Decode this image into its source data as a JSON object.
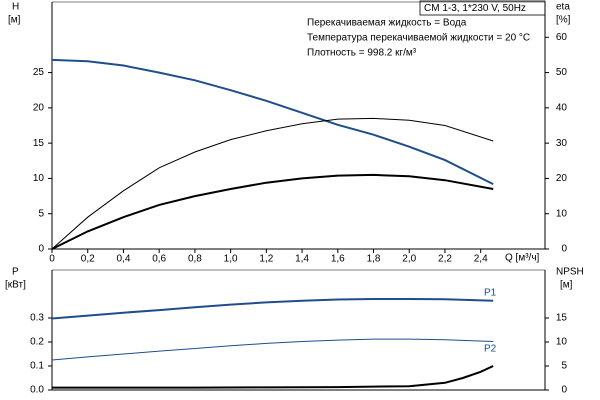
{
  "chart_data": [
    {
      "type": "line",
      "title": "CM 1-3, 1*230 V, 50Hz",
      "annotations": [
        "Перекачиваемая жидкость = Вода",
        "Температура перекачиваемой жидкости = 20 °C",
        "Плотность = 998.2 кг/м³"
      ],
      "y_label": "H",
      "y_unit": "[м]",
      "y2_label": "eta",
      "y2_unit": "[%]",
      "x_label": "Q [м³/ч]",
      "x": [
        0,
        0.2,
        0.4,
        0.6,
        0.8,
        1.0,
        1.2,
        1.4,
        1.6,
        1.8,
        2.0,
        2.2,
        2.47
      ],
      "xlim": [
        0,
        2.76
      ],
      "xticks": [
        0,
        {
          "value": 0.2,
          "label": "0,2"
        },
        {
          "value": 0.4,
          "label": "0,4"
        },
        {
          "value": 0.6,
          "label": "0,6"
        },
        {
          "value": 0.8,
          "label": "0,8"
        },
        {
          "value": 1.0,
          "label": "1,0"
        },
        {
          "value": 1.2,
          "label": "1,2"
        },
        {
          "value": 1.4,
          "label": "1,4"
        },
        {
          "value": 1.6,
          "label": "1,6"
        },
        {
          "value": 1.8,
          "label": "1,8"
        },
        {
          "value": 2.0,
          "label": "2,0"
        },
        {
          "value": 2.2,
          "label": "2,2"
        },
        {
          "value": 2.4,
          "label": "2,4"
        }
      ],
      "ylim": [
        0,
        35
      ],
      "yticks": [
        0,
        5,
        10,
        15,
        20,
        25
      ],
      "y2lim": [
        0,
        70
      ],
      "y2ticks": [
        0,
        10,
        20,
        30,
        40,
        50,
        60
      ],
      "series": [
        {
          "color": "#1f4e8c",
          "width": 2,
          "values": [
            26.8,
            26.6,
            26.0,
            25.0,
            23.9,
            22.5,
            21.0,
            19.3,
            17.6,
            16.2,
            14.5,
            12.6,
            9.2
          ]
        },
        {
          "color": "#000000",
          "width": 1,
          "axis": "y2",
          "values": [
            0,
            9,
            16.5,
            23,
            27.5,
            31,
            33.5,
            35.5,
            36.8,
            37,
            36.5,
            35,
            30.6
          ]
        },
        {
          "color": "#000000",
          "width": 2,
          "axis": "y2",
          "values": [
            0,
            5,
            9,
            12.5,
            15,
            17,
            18.8,
            20,
            20.8,
            21,
            20.6,
            19.5,
            17
          ]
        }
      ]
    },
    {
      "type": "line",
      "y_label": "P",
      "y_unit": "[кВт]",
      "y2_label": "NPSH",
      "y2_unit": "[м]",
      "x": [
        0,
        0.2,
        0.4,
        0.6,
        0.8,
        1.0,
        1.2,
        1.4,
        1.6,
        1.8,
        2.0,
        2.2,
        2.47
      ],
      "xlim": [
        0,
        2.76
      ],
      "ylim": [
        0,
        0.5
      ],
      "yticks": [
        {
          "value": 0,
          "label": "0.0"
        },
        0.1,
        0.2,
        0.3
      ],
      "y2lim": [
        0,
        25
      ],
      "y2ticks": [
        0,
        5,
        10,
        15
      ],
      "series": [
        {
          "name": "P1",
          "color": "#1f4e8c",
          "width": 2,
          "values": [
            0.298,
            0.31,
            0.322,
            0.333,
            0.345,
            0.356,
            0.365,
            0.372,
            0.377,
            0.379,
            0.379,
            0.378,
            0.372
          ]
        },
        {
          "name": "P2",
          "color": "#1f4e8c",
          "width": 1,
          "values": [
            0.125,
            0.138,
            0.15,
            0.162,
            0.173,
            0.184,
            0.194,
            0.202,
            0.208,
            0.212,
            0.212,
            0.209,
            0.202
          ]
        },
        {
          "color": "#000000",
          "width": 2,
          "axis": "y2",
          "x": [
            0,
            0.4,
            0.8,
            1.2,
            1.6,
            2.0,
            2.2,
            2.3,
            2.4,
            2.47
          ],
          "values": [
            0.5,
            0.5,
            0.5,
            0.55,
            0.6,
            0.8,
            1.5,
            2.5,
            3.8,
            5
          ]
        }
      ]
    }
  ]
}
